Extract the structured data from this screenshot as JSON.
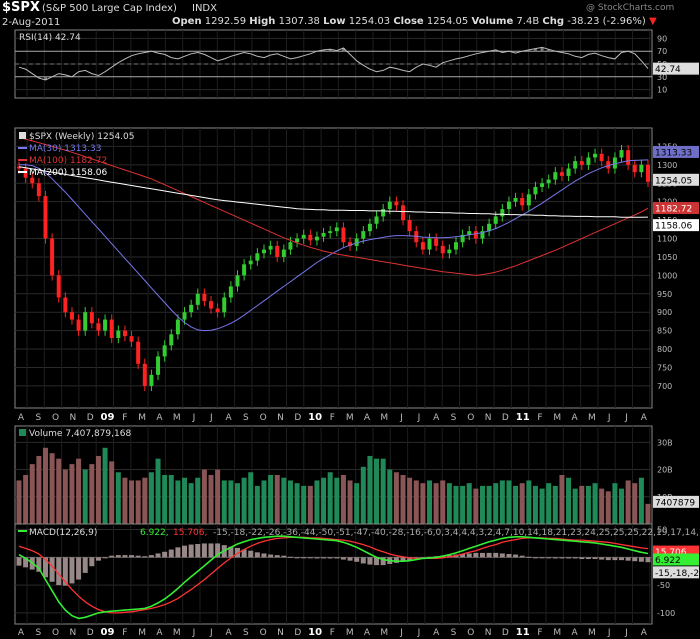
{
  "header": {
    "symbol": "$SPX",
    "name": "(S&P 500 Large Cap Index)",
    "exchange": "INDX",
    "date": "2-Aug-2011",
    "watermark": "@ StockCharts.com",
    "open_label": "Open",
    "open": "1292.59",
    "high_label": "High",
    "high": "1307.38",
    "low_label": "Low",
    "low": "1254.03",
    "close_label": "Close",
    "close": "1254.05",
    "volume_label": "Volume",
    "volume": "7.4B",
    "chg_label": "Chg",
    "chg": "-38.23 (-2.96%)"
  },
  "colors": {
    "background": "#000000",
    "up": "#33cc33",
    "down": "#ff2222",
    "ma30": "#7777ee",
    "ma100": "#dd3333",
    "ma200": "#ffffff",
    "rsi": "#bbbbbb",
    "vol_up": "#1f8a58",
    "vol_down": "#8a5555",
    "macd": "#33ee33",
    "signal": "#ff3333",
    "histogram": "#998888"
  },
  "chart_data": [
    {
      "type": "line",
      "panel": "rsi",
      "title": "RSI(14) 42.74",
      "current": "42.74",
      "ylim": [
        0,
        100
      ],
      "ticks": [
        "90",
        "70",
        "50",
        "30",
        "10"
      ],
      "reference_lines": [
        70,
        30
      ],
      "values": [
        45,
        42,
        35,
        28,
        25,
        30,
        35,
        33,
        30,
        38,
        40,
        35,
        32,
        38,
        45,
        52,
        58,
        63,
        66,
        68,
        70,
        67,
        65,
        60,
        58,
        62,
        66,
        68,
        65,
        60,
        55,
        58,
        62,
        65,
        68,
        66,
        62,
        60,
        64,
        66,
        62,
        58,
        60,
        63,
        66,
        70,
        72,
        73,
        71,
        75,
        65,
        55,
        48,
        42,
        38,
        40,
        45,
        43,
        40,
        38,
        45,
        50,
        48,
        45,
        52,
        55,
        58,
        60,
        63,
        66,
        68,
        70,
        72,
        68,
        70,
        67,
        70,
        72,
        74,
        76,
        73,
        70,
        68,
        66,
        62,
        60,
        65,
        67,
        63,
        60,
        58,
        68,
        70,
        66,
        55,
        42.74
      ]
    },
    {
      "type": "candlestick",
      "panel": "price",
      "title": "$SPX (Weekly) 1254.05",
      "ylim": [
        640,
        1400
      ],
      "y_ticks": [
        700,
        750,
        800,
        850,
        900,
        950,
        1000,
        1050,
        1100,
        1150,
        1200,
        1250,
        1300,
        1350
      ],
      "x_ticks": [
        "A",
        "S",
        "O",
        "N",
        "D",
        "09",
        "F",
        "M",
        "A",
        "M",
        "J",
        "J",
        "A",
        "S",
        "O",
        "N",
        "D",
        "10",
        "F",
        "M",
        "A",
        "M",
        "J",
        "J",
        "A",
        "S",
        "O",
        "N",
        "D",
        "11",
        "F",
        "M",
        "A",
        "M",
        "J",
        "J",
        "A"
      ],
      "closes": [
        1290,
        1265,
        1250,
        1215,
        1100,
        1000,
        940,
        900,
        880,
        850,
        900,
        870,
        850,
        880,
        830,
        850,
        835,
        820,
        760,
        700,
        730,
        780,
        810,
        840,
        880,
        900,
        920,
        950,
        930,
        910,
        900,
        940,
        970,
        1000,
        1030,
        1040,
        1060,
        1070,
        1080,
        1050,
        1070,
        1090,
        1100,
        1110,
        1095,
        1105,
        1115,
        1120,
        1130,
        1090,
        1080,
        1100,
        1120,
        1140,
        1160,
        1180,
        1200,
        1190,
        1150,
        1120,
        1090,
        1070,
        1100,
        1080,
        1060,
        1070,
        1090,
        1110,
        1120,
        1100,
        1120,
        1140,
        1160,
        1180,
        1200,
        1210,
        1190,
        1220,
        1240,
        1250,
        1260,
        1280,
        1270,
        1290,
        1310,
        1300,
        1320,
        1330,
        1310,
        1290,
        1320,
        1340,
        1300,
        1280,
        1300,
        1254
      ],
      "series": [
        {
          "name": "MA(30)",
          "value": "1313.33",
          "values": [
            1300,
            1300,
            1298,
            1290,
            1278,
            1262,
            1244,
            1226,
            1206,
            1186,
            1166,
            1146,
            1126,
            1106,
            1086,
            1066,
            1046,
            1026,
            1006,
            986,
            966,
            946,
            926,
            906,
            888,
            872,
            860,
            852,
            850,
            851,
            855,
            862,
            870,
            880,
            892,
            905,
            918,
            931,
            944,
            957,
            970,
            983,
            996,
            1009,
            1022,
            1035,
            1046,
            1056,
            1066,
            1075,
            1082,
            1088,
            1093,
            1097,
            1100,
            1103,
            1106,
            1108,
            1108,
            1107,
            1106,
            1104,
            1103,
            1102,
            1102,
            1103,
            1105,
            1107,
            1110,
            1113,
            1116,
            1121,
            1127,
            1135,
            1144,
            1154,
            1164,
            1174,
            1185,
            1196,
            1208,
            1220,
            1232,
            1244,
            1256,
            1266,
            1276,
            1284,
            1292,
            1298,
            1303,
            1307,
            1311,
            1312,
            1313,
            1313.33
          ]
        },
        {
          "name": "MA(100)",
          "value": "1182.72",
          "values": [
            1375,
            1370,
            1365,
            1360,
            1355,
            1350,
            1345,
            1340,
            1334,
            1328,
            1322,
            1316,
            1310,
            1304,
            1298,
            1292,
            1286,
            1280,
            1274,
            1268,
            1262,
            1254,
            1246,
            1238,
            1230,
            1222,
            1214,
            1206,
            1198,
            1190,
            1182,
            1174,
            1166,
            1158,
            1150,
            1142,
            1134,
            1126,
            1118,
            1110,
            1102,
            1095,
            1088,
            1082,
            1076,
            1071,
            1066,
            1062,
            1058,
            1055,
            1052,
            1049,
            1046,
            1043,
            1040,
            1037,
            1034,
            1031,
            1028,
            1025,
            1022,
            1019,
            1016,
            1013,
            1010,
            1008,
            1006,
            1004,
            1002,
            1000,
            1002,
            1005,
            1009,
            1014,
            1020,
            1026,
            1033,
            1040,
            1047,
            1054,
            1061,
            1068,
            1076,
            1084,
            1092,
            1100,
            1108,
            1116,
            1124,
            1132,
            1140,
            1148,
            1156,
            1164,
            1172,
            1182.72
          ]
        },
        {
          "name": "MA(200)",
          "value": "1158.06",
          "values": [
            1295,
            1292,
            1289,
            1286,
            1283,
            1280,
            1277,
            1274,
            1271,
            1268,
            1265,
            1262,
            1259,
            1256,
            1253,
            1250,
            1247,
            1244,
            1241,
            1238,
            1235,
            1232,
            1229,
            1226,
            1223,
            1220,
            1217,
            1214,
            1211,
            1208,
            1205,
            1203,
            1201,
            1199,
            1197,
            1195,
            1193,
            1191,
            1189,
            1187,
            1185,
            1183,
            1181,
            1180,
            1179,
            1178,
            1178,
            1177,
            1177,
            1177,
            1176,
            1176,
            1176,
            1175,
            1175,
            1175,
            1174,
            1174,
            1173,
            1173,
            1172,
            1172,
            1171,
            1171,
            1170,
            1170,
            1169,
            1169,
            1168,
            1168,
            1167,
            1167,
            1166,
            1166,
            1165,
            1165,
            1164,
            1164,
            1163,
            1163,
            1162,
            1162,
            1161,
            1161,
            1160,
            1160,
            1160,
            1159,
            1159,
            1159,
            1159,
            1158,
            1158,
            1158,
            1158,
            1158.06
          ]
        }
      ]
    },
    {
      "type": "bar",
      "panel": "volume",
      "title": "Volume 7,407,879,168",
      "current": "7407879",
      "ylim": [
        0,
        36
      ],
      "ticks": [
        "30B",
        "20B",
        "10B"
      ],
      "values": [
        16,
        18,
        22,
        25,
        28,
        26,
        24,
        20,
        22,
        24,
        20,
        22,
        25,
        28,
        23,
        19,
        17,
        16,
        16,
        17,
        19,
        24,
        18,
        18,
        16,
        17,
        15,
        17,
        20,
        18,
        20,
        16,
        16,
        15,
        17,
        19,
        14,
        16,
        18,
        18,
        17,
        16,
        15,
        14,
        14,
        16,
        17,
        19,
        17,
        18,
        16,
        15,
        21,
        25,
        24,
        24,
        20,
        19,
        18,
        17,
        16,
        15,
        16,
        15,
        16,
        15,
        14,
        14,
        15,
        13,
        14,
        14,
        15,
        16,
        16,
        14,
        15,
        16,
        14,
        13,
        15,
        14,
        18,
        17,
        13,
        14,
        14,
        15,
        13,
        12,
        15,
        13,
        16,
        15,
        17,
        7.4
      ]
    },
    {
      "type": "line",
      "panel": "macd",
      "title": "MACD(12,26,9)",
      "macd": "6.922",
      "signal": "15.706",
      "histogram": [
        -15,
        -18,
        -22,
        -26,
        -36,
        -44,
        -50,
        -51,
        -47,
        -40,
        -28,
        -16,
        -6,
        0,
        3,
        4,
        4,
        4,
        3,
        2,
        4,
        7,
        10,
        14,
        18,
        21,
        23,
        24,
        25,
        25,
        25,
        22,
        19,
        17,
        14,
        12,
        9,
        7,
        5,
        4,
        3,
        1,
        0,
        -1,
        -1,
        -2,
        -2,
        -2,
        -2,
        -4,
        -6,
        -8,
        -11,
        -13,
        -14,
        -14,
        -12,
        -10,
        -8,
        -5,
        -2,
        0,
        1,
        2,
        3,
        4,
        5,
        6,
        7,
        8,
        8,
        8,
        8,
        7,
        6,
        5,
        3,
        1,
        0,
        -1,
        -1,
        -2,
        -2,
        -2,
        -2,
        -3,
        -3,
        -3,
        -4,
        -5,
        -5,
        -5,
        -6,
        -7,
        -8,
        -8.784
      ],
      "ylim": [
        -120,
        60
      ],
      "ticks": [
        "50",
        "0",
        "-50",
        "-100"
      ],
      "series": [
        {
          "name": "MACD(12,26,9)",
          "values": [
            5,
            -2,
            -10,
            -20,
            -40,
            -60,
            -80,
            -95,
            -105,
            -110,
            -108,
            -104,
            -100,
            -98,
            -97,
            -96,
            -95,
            -94,
            -93,
            -92,
            -88,
            -82,
            -75,
            -66,
            -56,
            -45,
            -35,
            -25,
            -15,
            -5,
            5,
            12,
            18,
            24,
            28,
            32,
            34,
            36,
            37,
            38,
            38,
            37,
            36,
            35,
            34,
            33,
            32,
            31,
            30,
            27,
            23,
            18,
            12,
            6,
            0,
            -4,
            -6,
            -7,
            -7,
            -6,
            -4,
            -2,
            -1,
            0,
            2,
            5,
            8,
            12,
            16,
            20,
            24,
            28,
            31,
            34,
            36,
            37,
            37,
            36,
            35,
            34,
            33,
            32,
            31,
            30,
            29,
            28,
            27,
            26,
            24,
            22,
            20,
            18,
            15,
            12,
            9,
            6.922
          ]
        },
        {
          "name": "Signal",
          "values": [
            20,
            16,
            12,
            6,
            -4,
            -16,
            -30,
            -44,
            -58,
            -70,
            -80,
            -88,
            -94,
            -98,
            -100,
            -100,
            -99,
            -98,
            -96,
            -94,
            -92,
            -89,
            -85,
            -80,
            -74,
            -66,
            -58,
            -49,
            -40,
            -30,
            -20,
            -10,
            -1,
            7,
            14,
            20,
            25,
            29,
            32,
            34,
            35,
            36,
            36,
            36,
            35,
            35,
            34,
            33,
            32,
            31,
            29,
            26,
            23,
            19,
            14,
            10,
            6,
            3,
            1,
            -1,
            -2,
            -2,
            -2,
            -2,
            -1,
            1,
            3,
            6,
            9,
            12,
            16,
            20,
            23,
            27,
            30,
            32,
            34,
            35,
            35,
            35,
            34,
            34,
            33,
            32,
            31,
            31,
            30,
            29,
            28,
            27,
            25,
            23,
            21,
            19,
            17,
            15.706
          ]
        }
      ]
    }
  ]
}
